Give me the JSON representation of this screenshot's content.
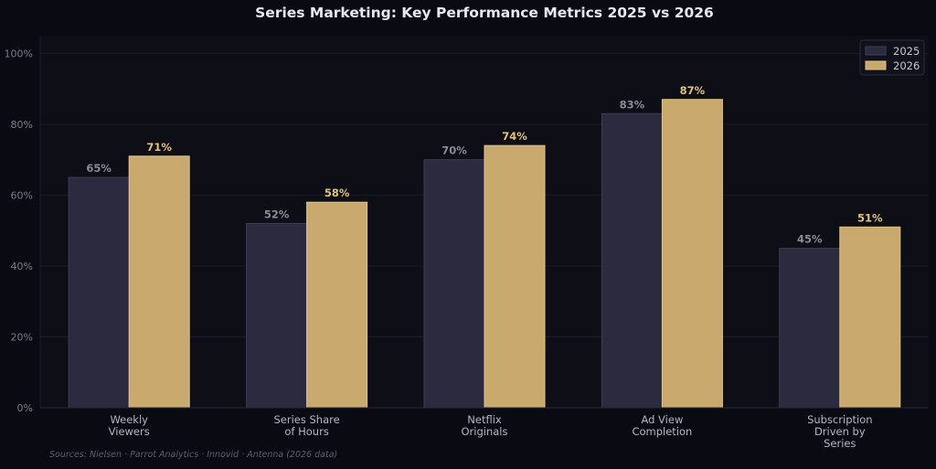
{
  "chart_data": {
    "type": "bar",
    "title": "Series Marketing: Key Performance Metrics 2025 vs 2026",
    "xlabel": "",
    "ylabel": "",
    "ylim": [
      0,
      105
    ],
    "yticks": [
      0,
      20,
      40,
      60,
      80,
      100
    ],
    "ytick_labels": [
      "0%",
      "20%",
      "40%",
      "60%",
      "80%",
      "100%"
    ],
    "grid": true,
    "legend_position": "top-right",
    "categories": [
      [
        "Weekly",
        "Viewers"
      ],
      [
        "Series Share",
        "of Hours"
      ],
      [
        "Netflix",
        "Originals"
      ],
      [
        "Ad View",
        "Completion"
      ],
      [
        "Subscription",
        "Driven by",
        "Series"
      ]
    ],
    "series": [
      {
        "name": "2025",
        "values": [
          65,
          52,
          70,
          83,
          45
        ],
        "labels": [
          "65%",
          "52%",
          "70%",
          "83%",
          "45%"
        ],
        "color": "#2b2a3f",
        "edge": "#3e3d58",
        "label_color": "#8a8a9a"
      },
      {
        "name": "2026",
        "values": [
          71,
          58,
          74,
          87,
          51
        ],
        "labels": [
          "71%",
          "58%",
          "74%",
          "87%",
          "51%"
        ],
        "color": "#c9a96e",
        "edge": "#e0c48a",
        "label_color": "#e4c27a"
      }
    ],
    "source_note": "Sources: Nielsen · Parrot Analytics · Innovid · Antenna (2026 data)"
  }
}
